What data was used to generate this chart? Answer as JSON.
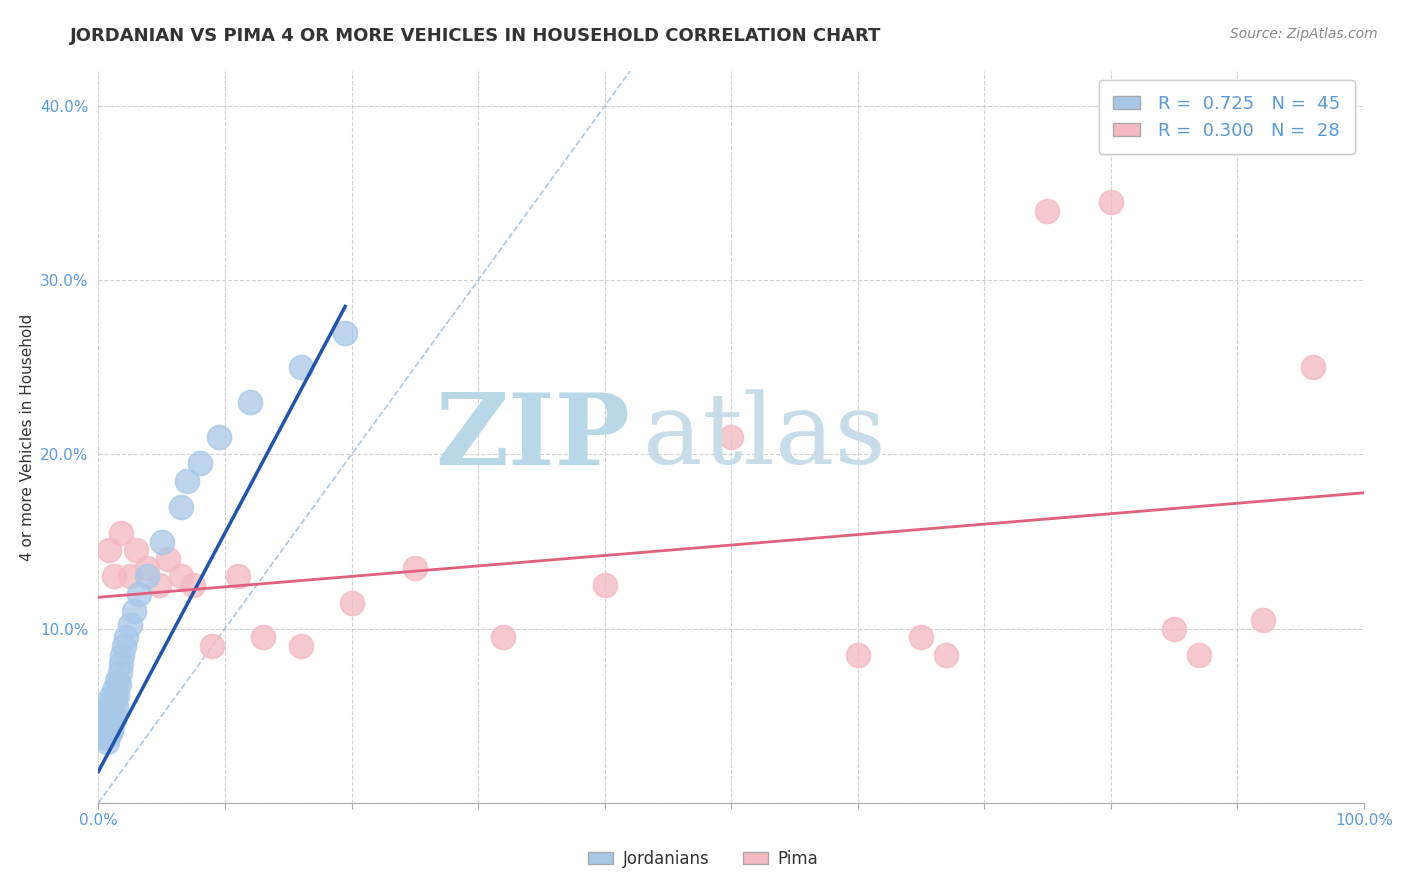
{
  "title": "JORDANIAN VS PIMA 4 OR MORE VEHICLES IN HOUSEHOLD CORRELATION CHART",
  "source_text": "Source: ZipAtlas.com",
  "ylabel": "4 or more Vehicles in Household",
  "xlim": [
    0.0,
    1.0
  ],
  "ylim": [
    0.0,
    0.42
  ],
  "xticks": [
    0.0,
    0.1,
    0.2,
    0.3,
    0.4,
    0.5,
    0.6,
    0.7,
    0.8,
    0.9,
    1.0
  ],
  "xticklabels": [
    "0.0%",
    "",
    "",
    "",
    "",
    "",
    "",
    "",
    "",
    "",
    "100.0%"
  ],
  "yticks": [
    0.0,
    0.1,
    0.2,
    0.3,
    0.4
  ],
  "yticklabels": [
    "",
    "10.0%",
    "20.0%",
    "30.0%",
    "40.0%"
  ],
  "grid_color": "#cccccc",
  "background_color": "#ffffff",
  "watermark_zip": "ZIP",
  "watermark_atlas": "atlas",
  "watermark_color_zip": "#b8d8e8",
  "watermark_color_atlas": "#c8dde8",
  "legend_R1": "0.725",
  "legend_N1": "45",
  "legend_R2": "0.300",
  "legend_N2": "28",
  "jordanian_color": "#a8c8e8",
  "pima_color": "#f4b8c0",
  "jordanian_line_color": "#2255aa",
  "pima_line_color": "#e06080",
  "ref_line_color": "#8ab0d0",
  "jordanian_points_x": [
    0.003,
    0.004,
    0.005,
    0.005,
    0.006,
    0.006,
    0.007,
    0.007,
    0.007,
    0.008,
    0.008,
    0.008,
    0.009,
    0.009,
    0.009,
    0.01,
    0.01,
    0.01,
    0.011,
    0.011,
    0.012,
    0.012,
    0.013,
    0.013,
    0.014,
    0.015,
    0.015,
    0.016,
    0.017,
    0.018,
    0.019,
    0.02,
    0.022,
    0.025,
    0.028,
    0.032,
    0.038,
    0.05,
    0.065,
    0.07,
    0.08,
    0.095,
    0.12,
    0.16,
    0.195
  ],
  "jordanian_points_y": [
    0.04,
    0.038,
    0.042,
    0.045,
    0.038,
    0.05,
    0.04,
    0.045,
    0.035,
    0.042,
    0.048,
    0.055,
    0.04,
    0.052,
    0.06,
    0.042,
    0.05,
    0.058,
    0.045,
    0.055,
    0.048,
    0.065,
    0.05,
    0.06,
    0.055,
    0.062,
    0.07,
    0.068,
    0.075,
    0.08,
    0.085,
    0.09,
    0.095,
    0.102,
    0.11,
    0.12,
    0.13,
    0.15,
    0.17,
    0.185,
    0.195,
    0.21,
    0.23,
    0.25,
    0.27
  ],
  "pima_points_x": [
    0.008,
    0.012,
    0.018,
    0.025,
    0.03,
    0.038,
    0.048,
    0.055,
    0.065,
    0.075,
    0.09,
    0.11,
    0.13,
    0.16,
    0.2,
    0.25,
    0.32,
    0.4,
    0.5,
    0.6,
    0.65,
    0.67,
    0.75,
    0.8,
    0.85,
    0.87,
    0.92,
    0.96
  ],
  "pima_points_y": [
    0.145,
    0.13,
    0.155,
    0.13,
    0.145,
    0.135,
    0.125,
    0.14,
    0.13,
    0.125,
    0.09,
    0.13,
    0.095,
    0.09,
    0.115,
    0.135,
    0.095,
    0.125,
    0.21,
    0.085,
    0.095,
    0.085,
    0.34,
    0.345,
    0.1,
    0.085,
    0.105,
    0.25
  ],
  "jordanian_line_x0": 0.0,
  "jordanian_line_y0": 0.018,
  "jordanian_line_x1": 0.195,
  "jordanian_line_y1": 0.285,
  "pima_line_x0": 0.0,
  "pima_line_y0": 0.118,
  "pima_line_x1": 1.0,
  "pima_line_y1": 0.178,
  "ref_line_x0": 0.0,
  "ref_line_x1": 0.42,
  "title_fontsize": 13,
  "tick_fontsize": 11,
  "tick_color": "#5b9bd5",
  "ylabel_color": "#333333",
  "legend_fontsize": 13
}
